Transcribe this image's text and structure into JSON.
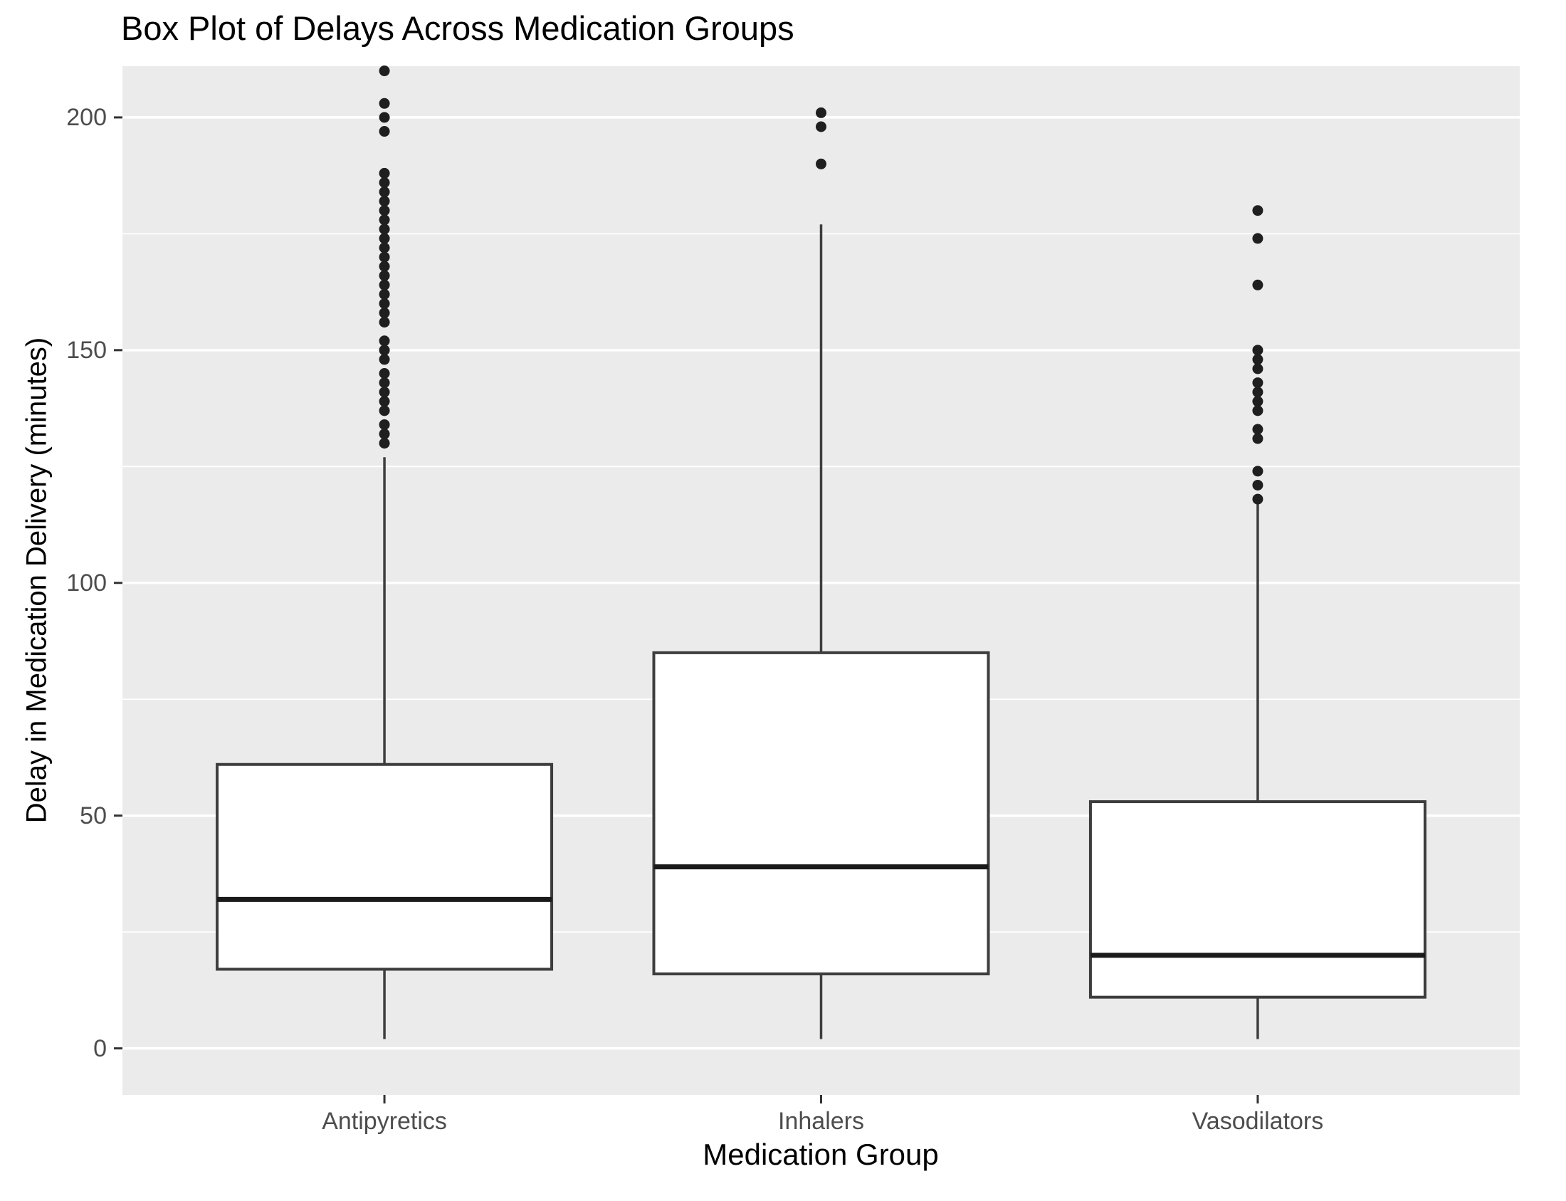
{
  "chart_data": {
    "type": "boxplot",
    "title": "Box Plot of Delays Across Medication Groups",
    "xlabel": "Medication Group",
    "ylabel": "Delay in Medication Delivery (minutes)",
    "categories": [
      "Antipyretics",
      "Inhalers",
      "Vasodilators"
    ],
    "y_ticks": [
      0,
      50,
      100,
      150,
      200
    ],
    "y_minor_ticks": [
      25,
      75,
      125,
      175
    ],
    "ylim": [
      -10,
      211
    ],
    "grid": true,
    "legend_position": "none",
    "series": [
      {
        "name": "Antipyretics",
        "whisker_low": 2,
        "q1": 17,
        "median": 32,
        "q3": 61,
        "whisker_high": 127,
        "outliers": [
          210,
          203,
          200,
          197,
          188,
          186,
          184,
          182,
          180,
          178,
          176,
          174,
          172,
          170,
          168,
          166,
          164,
          162,
          160,
          158,
          156,
          152,
          150,
          148,
          145,
          143,
          141,
          139,
          137,
          134,
          132,
          130
        ]
      },
      {
        "name": "Inhalers",
        "whisker_low": 2,
        "q1": 16,
        "median": 39,
        "q3": 85,
        "whisker_high": 177,
        "outliers": [
          201,
          198,
          190
        ]
      },
      {
        "name": "Vasodilators",
        "whisker_low": 2,
        "q1": 11,
        "median": 20,
        "q3": 53,
        "whisker_high": 117,
        "outliers": [
          180,
          174,
          164,
          150,
          148,
          146,
          143,
          141,
          139,
          137,
          133,
          131,
          124,
          121,
          118
        ]
      }
    ],
    "style": {
      "panel_bg": "#ebebeb",
      "grid_color": "#ffffff",
      "box_fill": "#ffffff",
      "box_stroke": "#3d3d3d",
      "median_color": "#1a1a1a",
      "whisker_color": "#3d3d3d",
      "outlier_color": "#1f1f1f",
      "tick_mark_color": "#333333",
      "tick_text_color": "#4d4d4d",
      "title_color": "#000000"
    }
  }
}
